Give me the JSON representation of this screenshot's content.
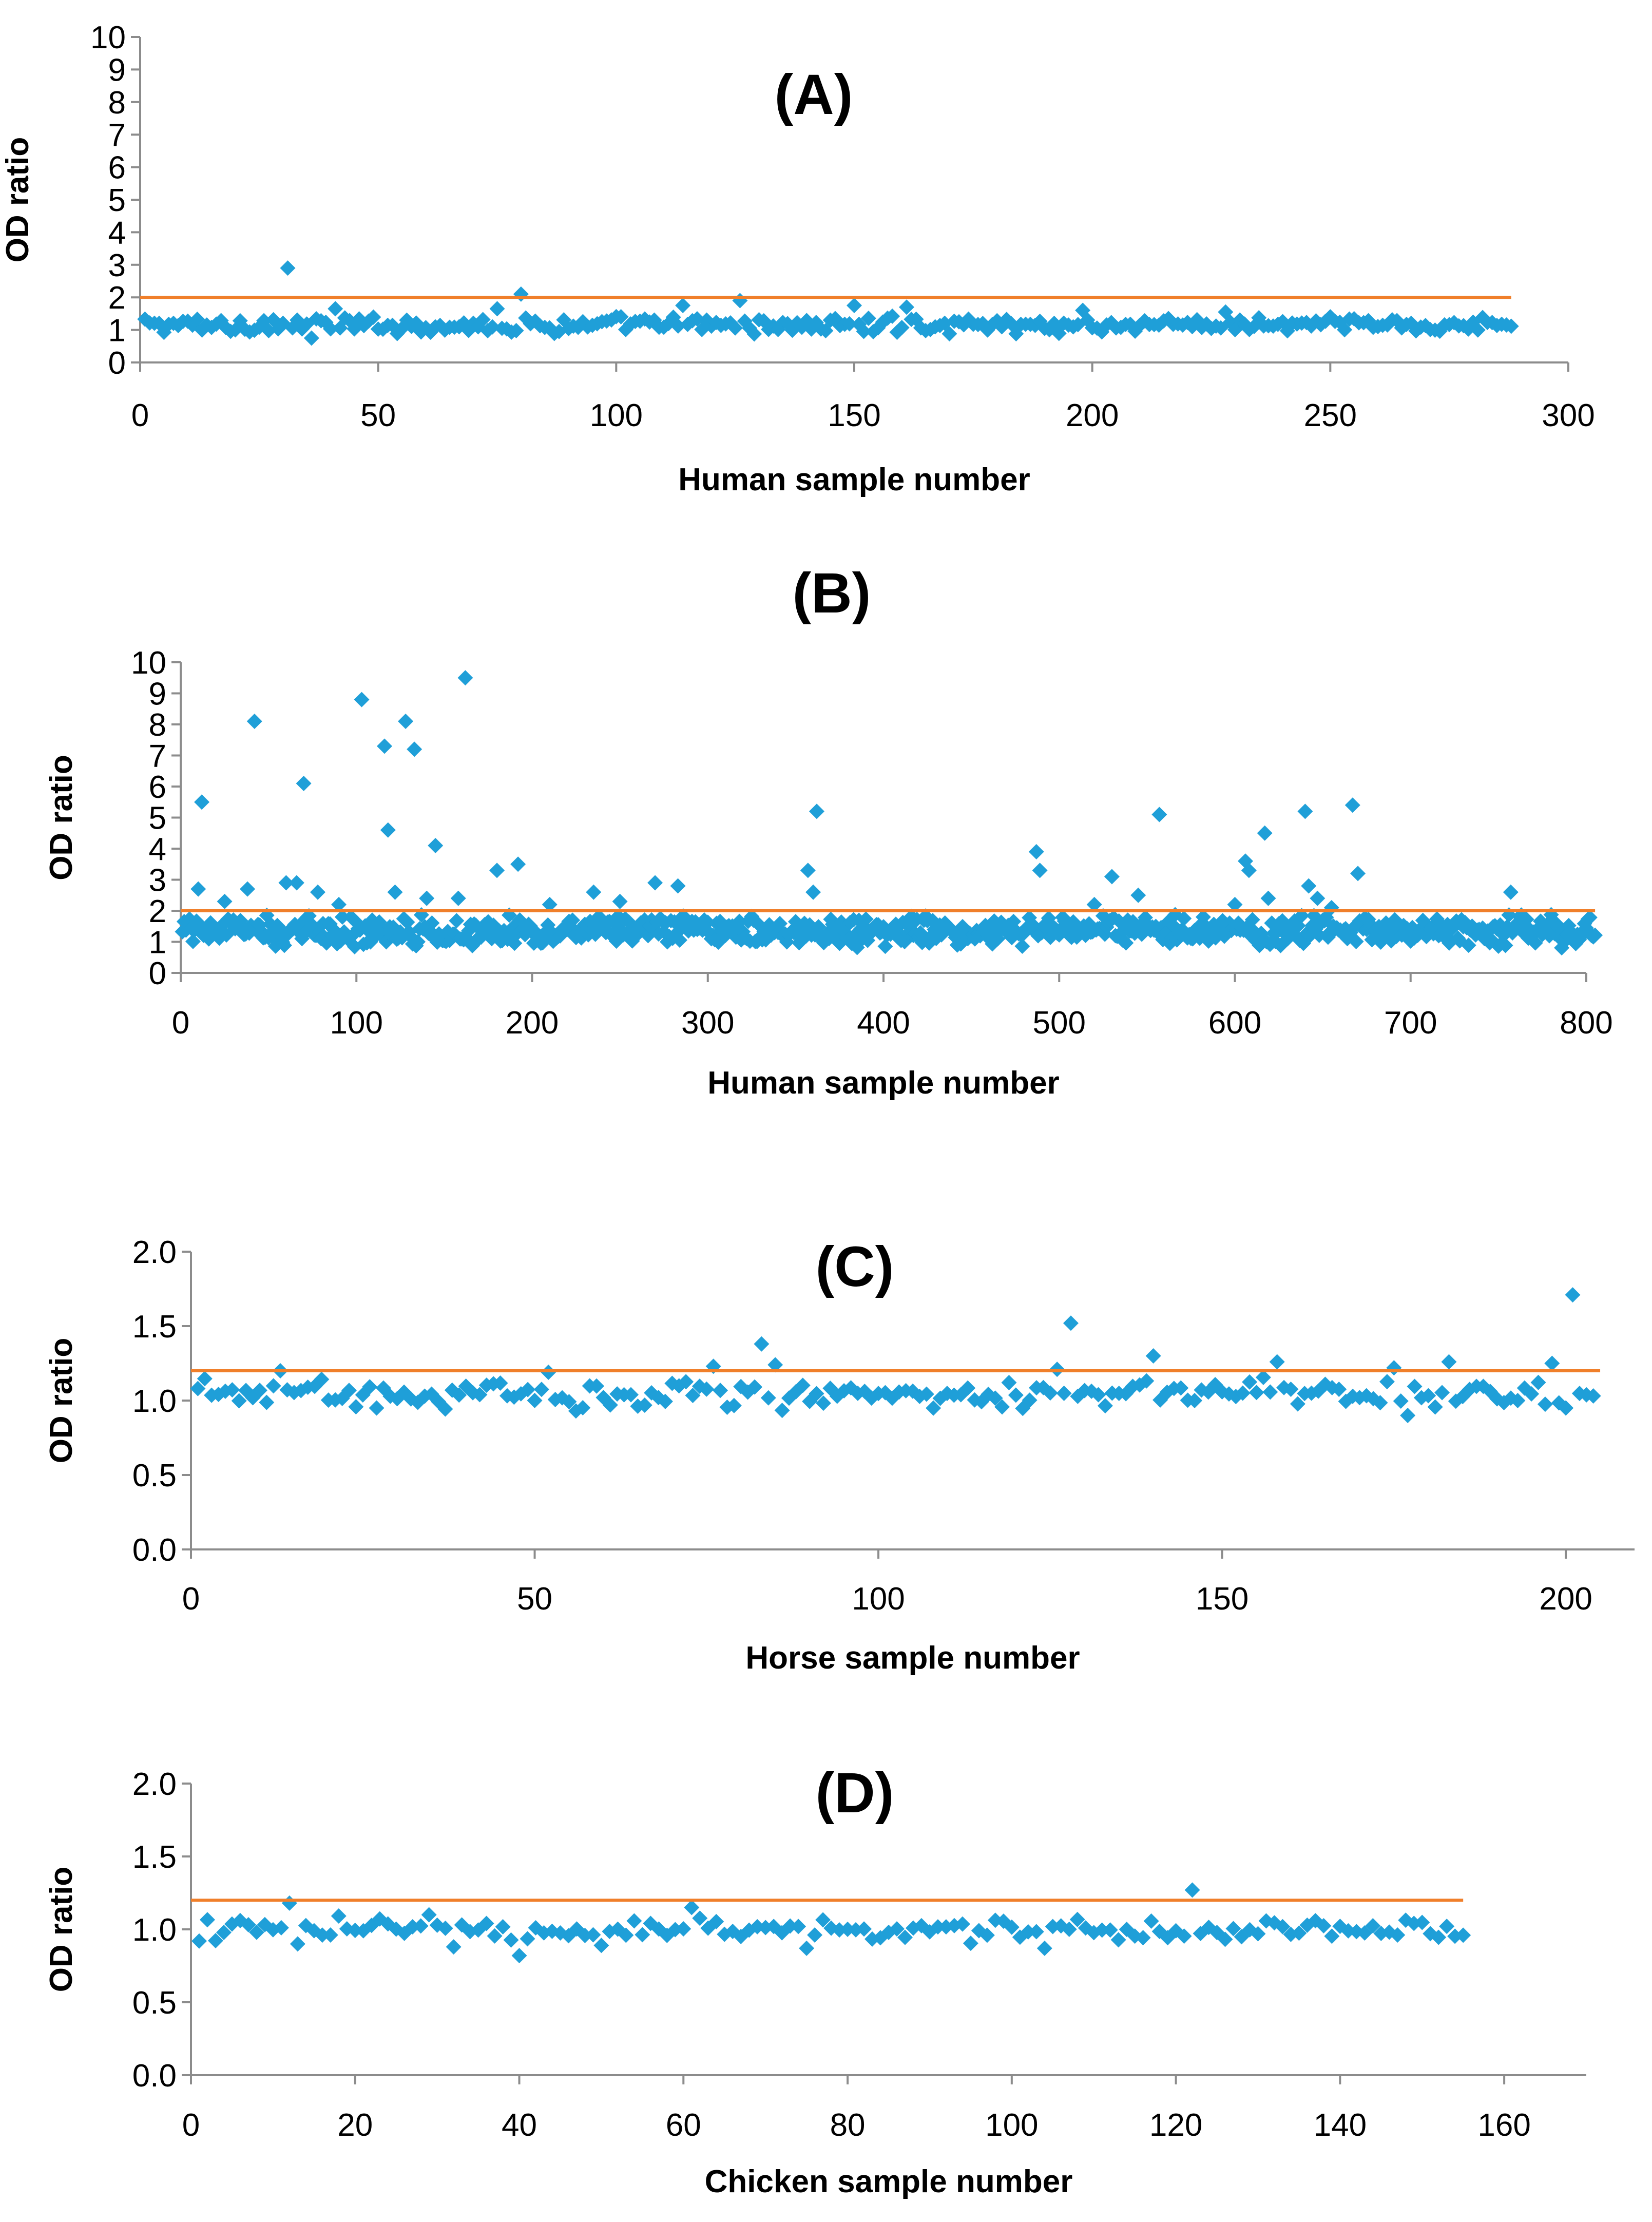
{
  "colors": {
    "marker": "#1f9fd8",
    "threshold": "#f07f2a",
    "axis": "#8c8c8c"
  },
  "chart_data": [
    {
      "type": "scatter",
      "title": "(A)",
      "xlabel": "Human sample number",
      "ylabel": "OD ratio",
      "xlim": [
        0,
        300
      ],
      "ylim": [
        0,
        10
      ],
      "xticks": [
        0,
        50,
        100,
        150,
        200,
        250,
        300
      ],
      "yticks": [
        0,
        1,
        2,
        3,
        4,
        5,
        6,
        7,
        8,
        9,
        10
      ],
      "yformat": 0,
      "cutoff": {
        "value": 2,
        "x_start": 0,
        "x_end": 288
      },
      "series": [
        {
          "name": "OD ratio",
          "base_count": 288,
          "base_min": 0.85,
          "base_max": 1.45,
          "outliers": [
            [
              31,
              2.9
            ],
            [
              80,
              2.1
            ],
            [
              126,
              1.9
            ],
            [
              150,
              1.75
            ],
            [
              161,
              1.7
            ],
            [
              114,
              1.75
            ],
            [
              41,
              1.65
            ],
            [
              75,
              1.65
            ],
            [
              198,
              1.6
            ],
            [
              228,
              1.55
            ],
            [
              36,
              0.75
            ]
          ]
        }
      ]
    },
    {
      "type": "scatter",
      "title": "(B)",
      "xlabel": "Human sample number",
      "ylabel": "OD ratio",
      "xlim": [
        0,
        800
      ],
      "ylim": [
        0,
        10
      ],
      "xticks": [
        0,
        100,
        200,
        300,
        400,
        500,
        600,
        700,
        800
      ],
      "yticks": [
        0,
        1,
        2,
        3,
        4,
        5,
        6,
        7,
        8,
        9,
        10
      ],
      "yformat": 0,
      "cutoff": {
        "value": 2,
        "x_start": 0,
        "x_end": 805
      },
      "series": [
        {
          "name": "OD ratio",
          "base_count": 805,
          "base_min": 0.8,
          "base_max": 1.9,
          "outliers": [
            [
              12,
              5.5
            ],
            [
              42,
              8.1
            ],
            [
              70,
              6.1
            ],
            [
              103,
              8.8
            ],
            [
              116,
              7.3
            ],
            [
              118,
              4.6
            ],
            [
              128,
              8.1
            ],
            [
              133,
              7.2
            ],
            [
              145,
              4.1
            ],
            [
              162,
              9.5
            ],
            [
              180,
              3.3
            ],
            [
              192,
              3.5
            ],
            [
              10,
              2.7
            ],
            [
              38,
              2.7
            ],
            [
              60,
              2.9
            ],
            [
              66,
              2.9
            ],
            [
              78,
              2.6
            ],
            [
              122,
              2.6
            ],
            [
              140,
              2.4
            ],
            [
              158,
              2.4
            ],
            [
              235,
              2.6
            ],
            [
              270,
              2.9
            ],
            [
              283,
              2.8
            ],
            [
              357,
              3.3
            ],
            [
              360,
              2.6
            ],
            [
              362,
              5.2
            ],
            [
              487,
              3.9
            ],
            [
              489,
              3.3
            ],
            [
              530,
              3.1
            ],
            [
              545,
              2.5
            ],
            [
              557,
              5.1
            ],
            [
              606,
              3.6
            ],
            [
              608,
              3.3
            ],
            [
              617,
              4.5
            ],
            [
              619,
              2.4
            ],
            [
              640,
              5.2
            ],
            [
              642,
              2.8
            ],
            [
              647,
              2.4
            ],
            [
              667,
              5.4
            ],
            [
              670,
              3.2
            ],
            [
              757,
              2.6
            ],
            [
              25,
              2.3
            ],
            [
              90,
              2.2
            ],
            [
              210,
              2.2
            ],
            [
              250,
              2.3
            ],
            [
              520,
              2.2
            ],
            [
              600,
              2.2
            ],
            [
              655,
              2.1
            ]
          ]
        }
      ]
    },
    {
      "type": "scatter",
      "title": "(C)",
      "xlabel": "Horse sample number",
      "ylabel": "OD ratio",
      "xlim": [
        0,
        210
      ],
      "ylim": [
        0,
        2
      ],
      "xticks": [
        0,
        50,
        100,
        150,
        200
      ],
      "yticks": [
        0,
        0.5,
        1.0,
        1.5,
        2.0
      ],
      "yformat": 1,
      "cutoff": {
        "value": 1.2,
        "x_start": 0,
        "x_end": 205
      },
      "series": [
        {
          "name": "OD ratio",
          "base_count": 204,
          "base_min": 0.93,
          "base_max": 1.16,
          "outliers": [
            [
              83,
              1.38
            ],
            [
              128,
              1.52
            ],
            [
              140,
              1.3
            ],
            [
              158,
              1.26
            ],
            [
              183,
              1.26
            ],
            [
              198,
              1.25
            ],
            [
              201,
              1.71
            ],
            [
              76,
              1.23
            ],
            [
              85,
              1.24
            ],
            [
              175,
              1.22
            ],
            [
              13,
              1.2
            ],
            [
              52,
              1.19
            ],
            [
              126,
              1.21
            ],
            [
              27,
              0.95
            ],
            [
              56,
              0.93
            ],
            [
              177,
              0.9
            ],
            [
              200,
              0.95
            ]
          ]
        }
      ]
    },
    {
      "type": "scatter",
      "title": "(D)",
      "xlabel": "Chicken sample number",
      "ylabel": "OD ratio",
      "xlim": [
        0,
        170
      ],
      "ylim": [
        0,
        2
      ],
      "xticks": [
        0,
        20,
        40,
        60,
        80,
        100,
        120,
        140,
        160
      ],
      "yticks": [
        0,
        0.5,
        1.0,
        1.5,
        2.0
      ],
      "yformat": 1,
      "cutoff": {
        "value": 1.2,
        "x_start": 0,
        "x_end": 155
      },
      "series": [
        {
          "name": "OD ratio",
          "base_count": 155,
          "base_min": 0.9,
          "base_max": 1.1,
          "outliers": [
            [
              12,
              1.18
            ],
            [
              13,
              0.9
            ],
            [
              29,
              1.1
            ],
            [
              32,
              0.88
            ],
            [
              40,
              0.82
            ],
            [
              50,
              0.89
            ],
            [
              61,
              1.15
            ],
            [
              75,
              0.87
            ],
            [
              104,
              0.87
            ],
            [
              122,
              1.27
            ],
            [
              1,
              0.92
            ],
            [
              155,
              0.96
            ]
          ]
        }
      ]
    }
  ]
}
